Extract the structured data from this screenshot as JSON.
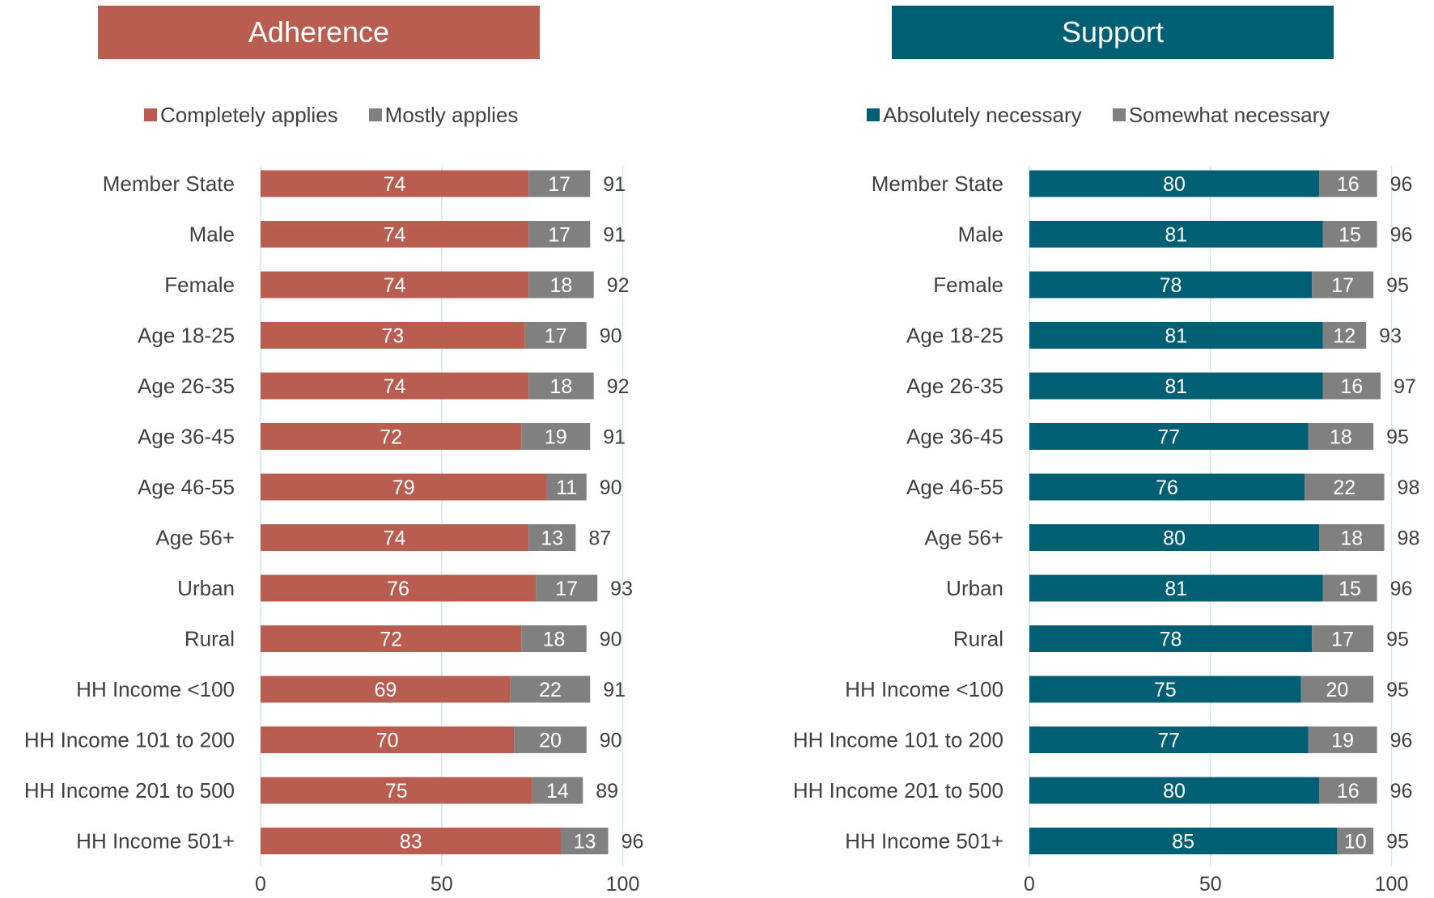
{
  "colors": {
    "adherence_primary": "#b95d51",
    "support_primary": "#005f73",
    "secondary": "#808080",
    "grid": "#cfe8f3"
  },
  "chart_data": [
    {
      "type": "bar",
      "orientation": "horizontal",
      "stacked": true,
      "title": "Adherence",
      "categories": [
        "Member State",
        "Male",
        "Female",
        "Age 18-25",
        "Age 26-35",
        "Age 36-45",
        "Age 46-55",
        "Age 56+",
        "Urban",
        "Rural",
        "HH Income <100",
        "HH Income 101 to 200",
        "HH Income 201 to 500",
        "HH Income 501+"
      ],
      "series": [
        {
          "name": "Completely applies",
          "values": [
            74,
            74,
            74,
            73,
            74,
            72,
            79,
            74,
            76,
            72,
            69,
            70,
            75,
            83
          ]
        },
        {
          "name": "Mostly applies",
          "values": [
            17,
            17,
            18,
            17,
            18,
            19,
            11,
            13,
            17,
            18,
            22,
            20,
            14,
            13
          ]
        }
      ],
      "totals": [
        91,
        91,
        92,
        90,
        92,
        91,
        90,
        87,
        93,
        90,
        91,
        90,
        89,
        96
      ],
      "xlim": [
        0,
        100
      ],
      "xticks": [
        "0",
        "50",
        "100"
      ],
      "legend_position": "top"
    },
    {
      "type": "bar",
      "orientation": "horizontal",
      "stacked": true,
      "title": "Support",
      "categories": [
        "Member State",
        "Male",
        "Female",
        "Age 18-25",
        "Age 26-35",
        "Age 36-45",
        "Age 46-55",
        "Age 56+",
        "Urban",
        "Rural",
        "HH Income <100",
        "HH Income 101 to 200",
        "HH Income 201 to 500",
        "HH Income 501+"
      ],
      "series": [
        {
          "name": "Absolutely necessary",
          "values": [
            80,
            81,
            78,
            81,
            81,
            77,
            76,
            80,
            81,
            78,
            75,
            77,
            80,
            85
          ]
        },
        {
          "name": "Somewhat necessary",
          "values": [
            16,
            15,
            17,
            12,
            16,
            18,
            22,
            18,
            15,
            17,
            20,
            19,
            16,
            10
          ]
        }
      ],
      "totals": [
        96,
        96,
        95,
        93,
        97,
        95,
        98,
        98,
        96,
        95,
        95,
        96,
        96,
        95
      ],
      "xlim": [
        0,
        100
      ],
      "xticks": [
        "0",
        "50",
        "100"
      ],
      "legend_position": "top"
    }
  ]
}
